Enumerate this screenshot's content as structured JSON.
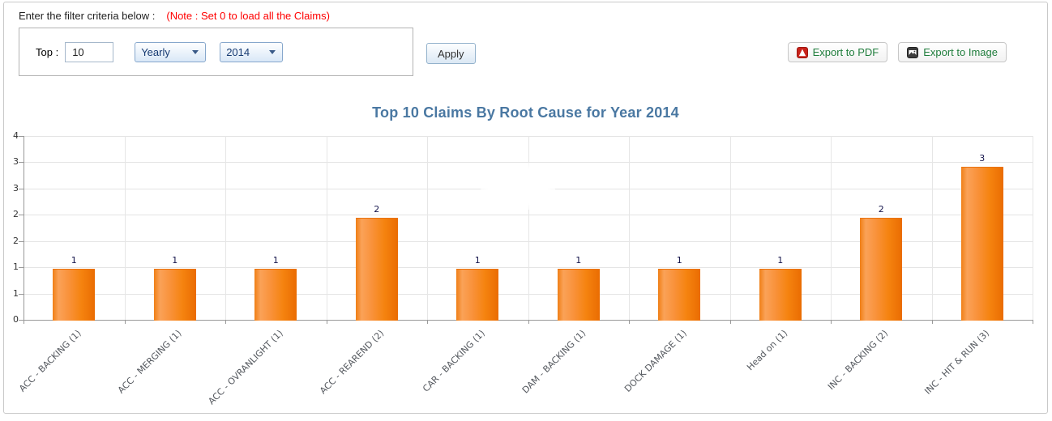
{
  "filter": {
    "label": "Enter the filter criteria below :",
    "note": "(Note : Set 0 to load all the Claims)",
    "top_label": "Top :",
    "top_value": "10",
    "period_selected": "Yearly",
    "year_selected": "2014",
    "apply_label": "Apply"
  },
  "toolbar": {
    "export_pdf_label": "Export to PDF",
    "export_image_label": "Export to Image"
  },
  "chart_data": {
    "type": "bar",
    "title": "Top 10 Claims By Root Cause for Year 2014",
    "categories": [
      "ACC - BACKING (1)",
      "ACC - MERGING (1)",
      "ACC - OVRANLIGHT (1)",
      "ACC - REAREND (2)",
      "CAR - BACKING (1)",
      "DAM - BACKING (1)",
      "DOCK DAMAGE (1)",
      "Head on (1)",
      "INC - BACKING (2)",
      "INC - HIT & RUN (3)"
    ],
    "values": [
      1,
      1,
      1,
      2,
      1,
      1,
      1,
      1,
      2,
      3
    ],
    "xlabel": "",
    "ylabel": "",
    "ylim": [
      0,
      3.6
    ],
    "ytick_labels_top_to_bottom": [
      "4",
      "3",
      "3",
      "2",
      "2",
      "1",
      "1",
      "0"
    ],
    "grid": true,
    "legend_position": "none",
    "bar_color": "#f5821f",
    "value_labels_shown": true
  },
  "colors": {
    "title": "#4a78a2",
    "note": "#ff0000",
    "bar": "#f5821f",
    "bar_edge": "#ea6c02",
    "gridline": "#e4e4e4",
    "axis": "#999999",
    "export_text": "#1f7d3c",
    "dropdown_text": "#163a72"
  }
}
